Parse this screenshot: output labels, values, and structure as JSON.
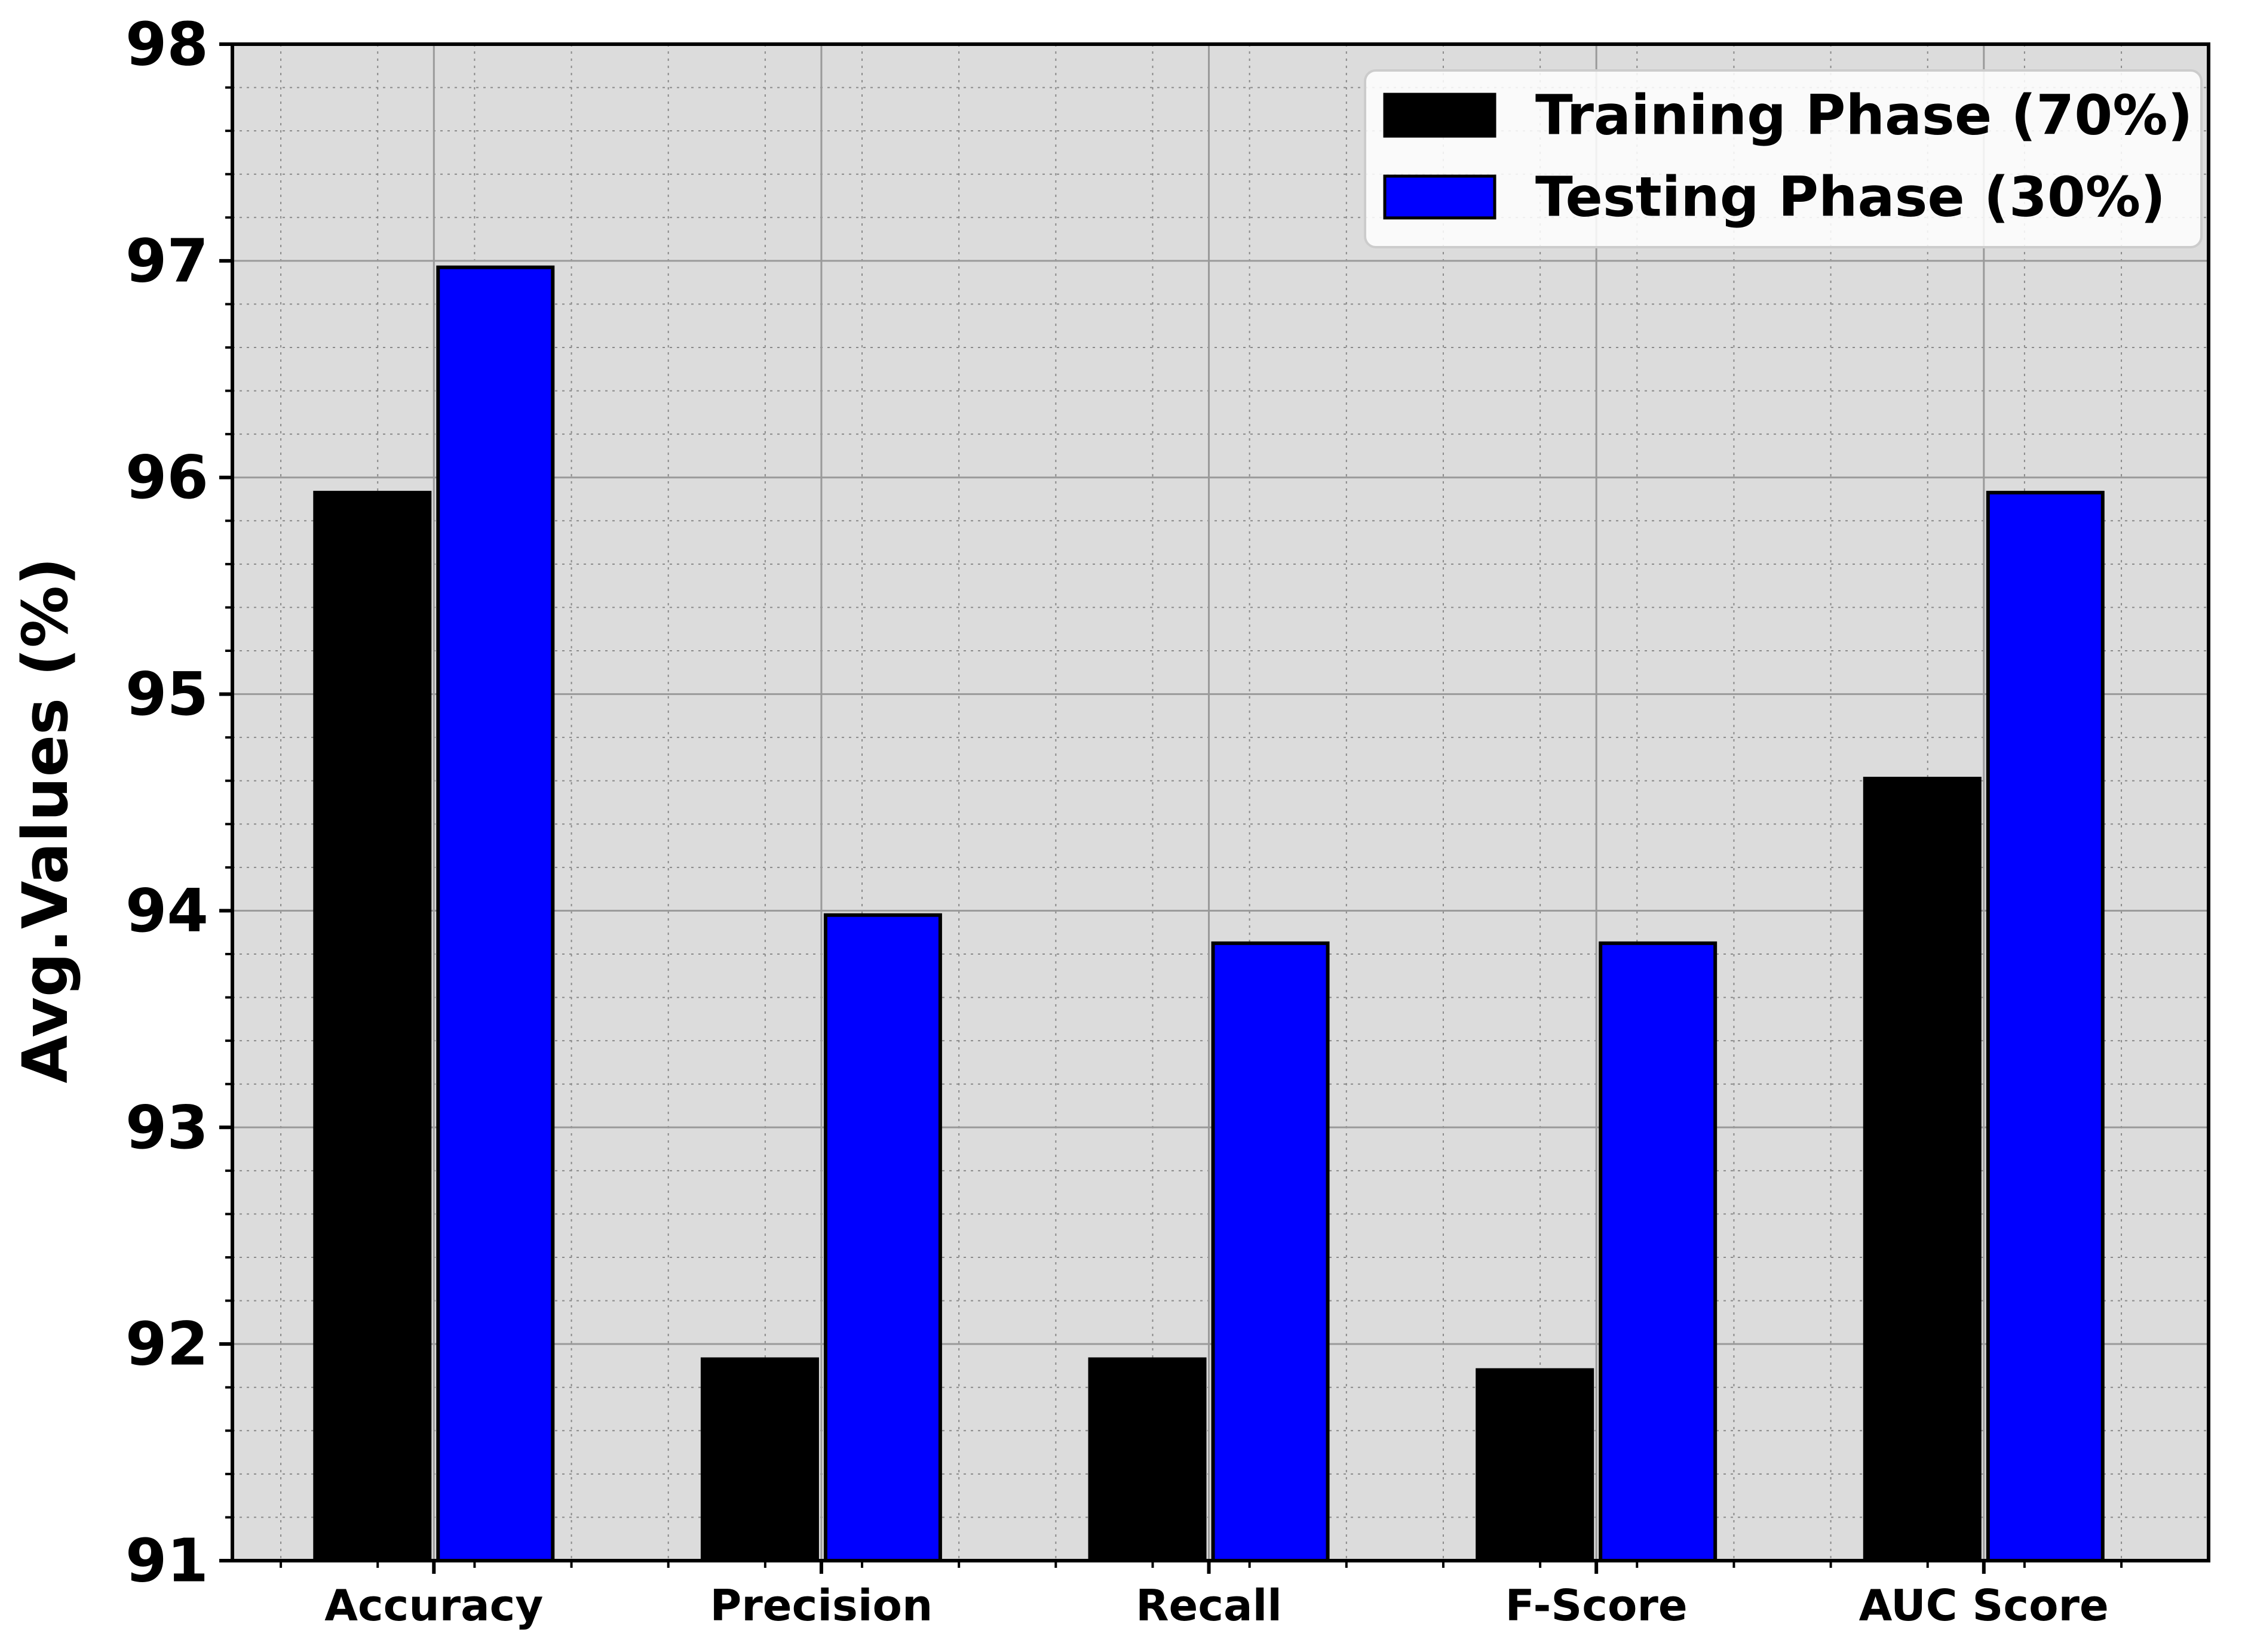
{
  "chart_data": {
    "type": "bar",
    "title": "",
    "xlabel": "",
    "ylabel": "Avg.Values (%)",
    "categories": [
      "Accuracy",
      "Precision",
      "Recall",
      "F-Score",
      "AUC Score"
    ],
    "series": [
      {
        "name": "Training Phase (70%)",
        "color": "#000000",
        "values": [
          95.93,
          91.93,
          91.93,
          91.88,
          94.61
        ]
      },
      {
        "name": "Testing Phase (30%)",
        "color": "#0000ff",
        "values": [
          96.97,
          93.98,
          93.85,
          93.85,
          95.93
        ]
      }
    ],
    "ylim": [
      91,
      98
    ],
    "yticks": [
      "91",
      "92",
      "93",
      "94",
      "95",
      "96",
      "97",
      "98"
    ],
    "grid": true,
    "minor_grid": true,
    "legend_position": "top-right",
    "plot_background": "#dcdcdc"
  }
}
